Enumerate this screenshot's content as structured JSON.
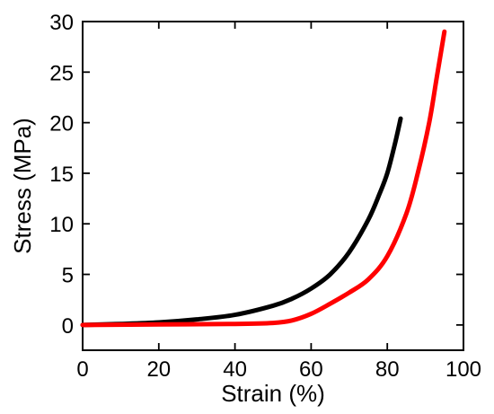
{
  "chart_data": {
    "type": "line",
    "title": "",
    "xlabel": "Strain (%)",
    "ylabel": "Stress (MPa)",
    "xlim": [
      0,
      100
    ],
    "ylim": [
      -2.5,
      30
    ],
    "xticks": [
      0,
      20,
      40,
      60,
      80,
      100
    ],
    "xtick_labels": [
      "0",
      "20",
      "40",
      "60",
      "80",
      "100"
    ],
    "yticks": [
      0,
      5,
      10,
      15,
      20,
      25,
      30
    ],
    "ytick_labels": [
      "0",
      "5",
      "10",
      "15",
      "20",
      "25",
      "30"
    ],
    "grid": false,
    "legend": "none",
    "series": [
      {
        "color": "#000000",
        "x": [
          0,
          10,
          20,
          30,
          40,
          50,
          55,
          60,
          65,
          70,
          75,
          78,
          80,
          82,
          83.5
        ],
        "y": [
          0,
          0.1,
          0.25,
          0.55,
          1.0,
          1.9,
          2.6,
          3.6,
          5.0,
          7.2,
          10.4,
          13.0,
          15.0,
          17.9,
          20.4
        ]
      },
      {
        "color": "#ff0000",
        "x": [
          0,
          20,
          40,
          50,
          55,
          60,
          65,
          70,
          75,
          80,
          85,
          88,
          91,
          93,
          95
        ],
        "y": [
          0,
          0.05,
          0.1,
          0.2,
          0.45,
          1.1,
          2.1,
          3.2,
          4.5,
          6.8,
          11.0,
          15.0,
          20.0,
          24.5,
          29.0
        ]
      }
    ]
  }
}
